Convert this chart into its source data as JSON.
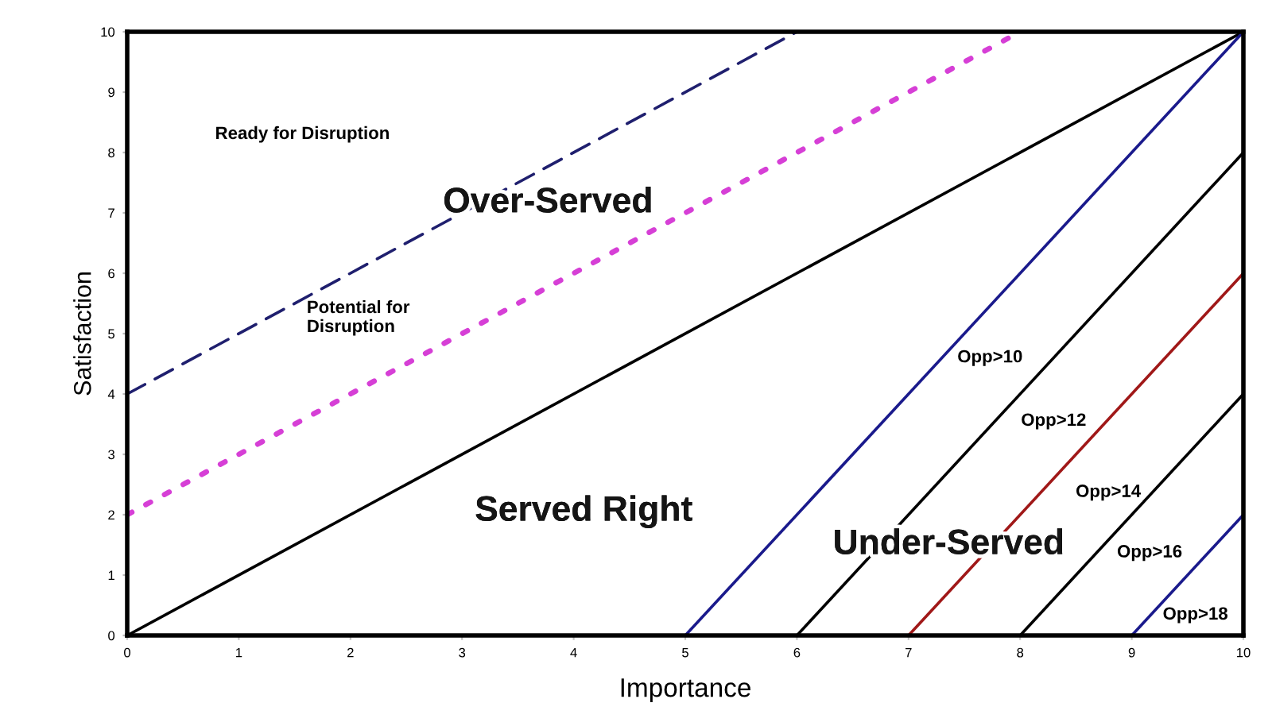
{
  "chart_data": {
    "type": "line",
    "xlabel": "Importance",
    "ylabel": "Satisfaction",
    "xlim": [
      0,
      10
    ],
    "ylim": [
      0,
      10
    ],
    "xticks": [
      0,
      1,
      2,
      3,
      4,
      5,
      6,
      7,
      8,
      9,
      10
    ],
    "yticks": [
      0,
      1,
      2,
      3,
      4,
      5,
      6,
      7,
      8,
      9,
      10
    ],
    "grid": false,
    "marker": "none",
    "series": [
      {
        "x": [
          0,
          6
        ],
        "values": [
          4,
          10
        ],
        "color": "#1f1f6e",
        "line_style": "dashed"
      },
      {
        "x": [
          0,
          8
        ],
        "values": [
          2,
          10
        ],
        "color": "#d63fd6",
        "line_style": "dotted"
      },
      {
        "x": [
          0,
          10
        ],
        "values": [
          0,
          10
        ],
        "color": "#000000",
        "line_style": "solid"
      },
      {
        "x": [
          5,
          10
        ],
        "values": [
          0,
          10
        ],
        "color": "#1a1a8c",
        "line_style": "solid"
      },
      {
        "x": [
          6,
          10
        ],
        "values": [
          0,
          8
        ],
        "color": "#000000",
        "line_style": "solid"
      },
      {
        "x": [
          7,
          10
        ],
        "values": [
          0,
          6
        ],
        "color": "#a01818",
        "line_style": "solid"
      },
      {
        "x": [
          8,
          10
        ],
        "values": [
          0,
          4
        ],
        "color": "#000000",
        "line_style": "solid"
      },
      {
        "x": [
          9,
          10
        ],
        "values": [
          0,
          2
        ],
        "color": "#1a1a8c",
        "line_style": "solid"
      }
    ],
    "annotations": [
      "Ready for Disruption",
      "Over-Served",
      "Potential for\nDisruption",
      "Served Right",
      "Under-Served",
      "Opp>10",
      "Opp>12",
      "Opp>14",
      "Opp>16",
      "Opp>18"
    ]
  }
}
